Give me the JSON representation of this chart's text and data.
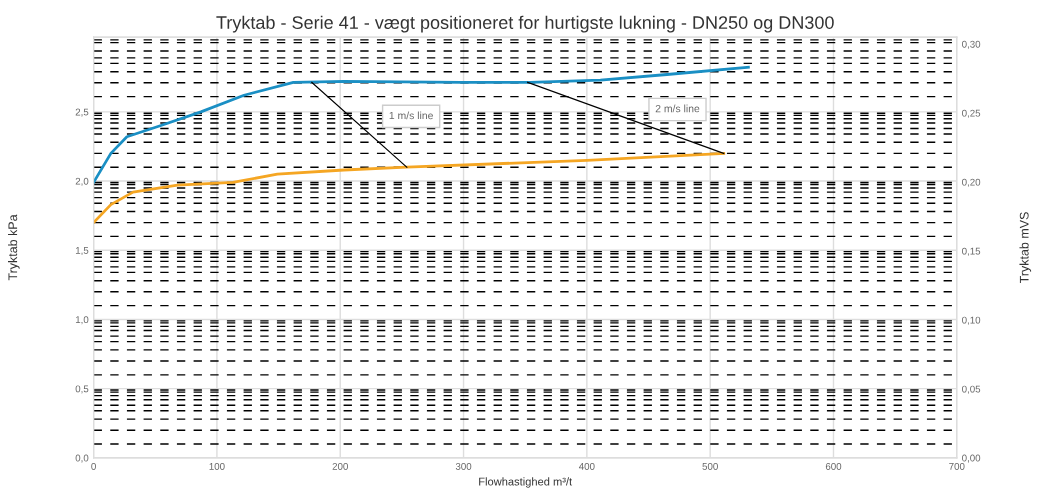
{
  "chart_data": {
    "type": "line",
    "title": "Tryktab - Serie 41 - vægt positioneret for hurtigste lukning - DN250 og DN300",
    "xlabel": "Flowhastighed m³/t",
    "ylabel": "Tryktab kPa",
    "y2label": "Tryktab mVS",
    "xlim": [
      0,
      700
    ],
    "xticks": [
      0,
      100,
      200,
      300,
      400,
      500,
      600,
      700
    ],
    "ylim": [
      0,
      3.04
    ],
    "yticks": [
      {
        "value": 0,
        "label": "0,0"
      },
      {
        "value": 0.5,
        "label": "0,5"
      },
      {
        "value": 1.0,
        "label": "1,0"
      },
      {
        "value": 1.5,
        "label": "1,5"
      },
      {
        "value": 2.0,
        "label": "2,0"
      },
      {
        "value": 2.5,
        "label": "2,5"
      }
    ],
    "y2lim": [
      0,
      0.305
    ],
    "y2ticks": [
      {
        "value": 0,
        "label": "0,00"
      },
      {
        "value": 0.05,
        "label": "0,05"
      },
      {
        "value": 0.1,
        "label": "0,10"
      },
      {
        "value": 0.15,
        "label": "0,15"
      },
      {
        "value": 0.2,
        "label": "0,20"
      },
      {
        "value": 0.25,
        "label": "0,25"
      },
      {
        "value": 0.3,
        "label": "0,30"
      }
    ],
    "grid": true,
    "legend": false,
    "marker": "none",
    "line_style": "solid",
    "series": [
      {
        "color": "#1a8fc4",
        "x": [
          0,
          14,
          27,
          54,
          87,
          122,
          162,
          203,
          298,
          354,
          411,
          465,
          531
        ],
        "values": [
          1.99,
          2.2,
          2.32,
          2.4,
          2.5,
          2.62,
          2.713,
          2.72,
          2.713,
          2.713,
          2.73,
          2.77,
          2.823
        ]
      },
      {
        "color": "#f5a623",
        "x": [
          0,
          14,
          32,
          68,
          113,
          149,
          203,
          254,
          400,
          511
        ],
        "values": [
          1.7,
          1.83,
          1.92,
          1.97,
          1.99,
          2.05,
          2.08,
          2.1,
          2.15,
          2.2
        ]
      },
      {
        "name": "1 m/s line",
        "color": "#000000",
        "x": [
          177,
          254
        ],
        "values": [
          2.713,
          2.1
        ]
      },
      {
        "name": "2 m/s line",
        "color": "#000000",
        "x": [
          352,
          511
        ],
        "values": [
          2.713,
          2.2
        ]
      }
    ],
    "ref_lines": [
      {
        "axis": "y",
        "value": 0.1
      },
      {
        "axis": "y",
        "value": 0.2
      },
      {
        "axis": "y",
        "value": 0.28
      },
      {
        "axis": "y",
        "value": 0.34
      },
      {
        "axis": "y",
        "value": 0.38
      },
      {
        "axis": "y",
        "value": 0.42
      },
      {
        "axis": "y",
        "value": 0.45
      },
      {
        "axis": "y",
        "value": 0.475
      },
      {
        "axis": "y",
        "value": 0.49
      },
      {
        "axis": "y",
        "value": 0.6
      },
      {
        "axis": "y",
        "value": 0.7
      },
      {
        "axis": "y",
        "value": 0.78
      },
      {
        "axis": "y",
        "value": 0.84
      },
      {
        "axis": "y",
        "value": 0.88
      },
      {
        "axis": "y",
        "value": 0.92
      },
      {
        "axis": "y",
        "value": 0.95
      },
      {
        "axis": "y",
        "value": 0.975
      },
      {
        "axis": "y",
        "value": 0.99
      },
      {
        "axis": "y",
        "value": 1.1
      },
      {
        "axis": "y",
        "value": 1.2
      },
      {
        "axis": "y",
        "value": 1.28
      },
      {
        "axis": "y",
        "value": 1.34
      },
      {
        "axis": "y",
        "value": 1.38
      },
      {
        "axis": "y",
        "value": 1.42
      },
      {
        "axis": "y",
        "value": 1.45
      },
      {
        "axis": "y",
        "value": 1.475
      },
      {
        "axis": "y",
        "value": 1.49
      },
      {
        "axis": "y",
        "value": 1.6
      },
      {
        "axis": "y",
        "value": 1.7
      },
      {
        "axis": "y",
        "value": 1.78
      },
      {
        "axis": "y",
        "value": 1.84
      },
      {
        "axis": "y",
        "value": 1.88
      },
      {
        "axis": "y",
        "value": 1.92
      },
      {
        "axis": "y",
        "value": 1.95
      },
      {
        "axis": "y",
        "value": 1.975
      },
      {
        "axis": "y",
        "value": 1.99
      },
      {
        "axis": "y",
        "value": 2.1
      },
      {
        "axis": "y",
        "value": 2.2
      },
      {
        "axis": "y",
        "value": 2.28
      },
      {
        "axis": "y",
        "value": 2.34
      },
      {
        "axis": "y",
        "value": 2.38
      },
      {
        "axis": "y",
        "value": 2.42
      },
      {
        "axis": "y",
        "value": 2.45
      },
      {
        "axis": "y",
        "value": 2.475
      },
      {
        "axis": "y",
        "value": 2.49
      },
      {
        "axis": "y",
        "value": 2.61
      },
      {
        "axis": "y",
        "value": 2.71
      },
      {
        "axis": "y",
        "value": 2.79
      },
      {
        "axis": "y",
        "value": 2.85
      },
      {
        "axis": "y",
        "value": 2.89
      },
      {
        "axis": "y",
        "value": 2.94
      },
      {
        "axis": "y",
        "value": 3.0
      },
      {
        "axis": "y",
        "value": 3.02
      }
    ]
  }
}
